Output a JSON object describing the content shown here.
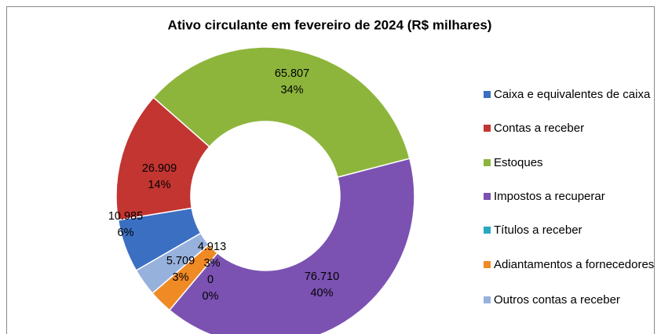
{
  "chart_data": {
    "type": "donut",
    "title": "Ativo circulante em fevereiro de 2024 (R$ milhares)",
    "categories": [
      "Caixa e equivalentes de caixa",
      "Contas a receber",
      "Estoques",
      "Impostos a recuperar",
      "Títulos a receber",
      "Adiantamentos a fornecedores",
      "Outros contas a receber"
    ],
    "values": [
      10985,
      26909,
      65807,
      76710,
      0,
      4913,
      5709
    ],
    "value_labels": [
      "10.985",
      "26.909",
      "65.807",
      "76.710",
      "0",
      "4.913",
      "5.709"
    ],
    "percent_labels": [
      "6%",
      "14%",
      "34%",
      "40%",
      "0%",
      "3%",
      "3%"
    ],
    "colors": [
      "#3b6fc2",
      "#c23531",
      "#8db53c",
      "#7b52b2",
      "#2ba6c1",
      "#ef8a25",
      "#97b1dd"
    ],
    "legend": "right"
  }
}
